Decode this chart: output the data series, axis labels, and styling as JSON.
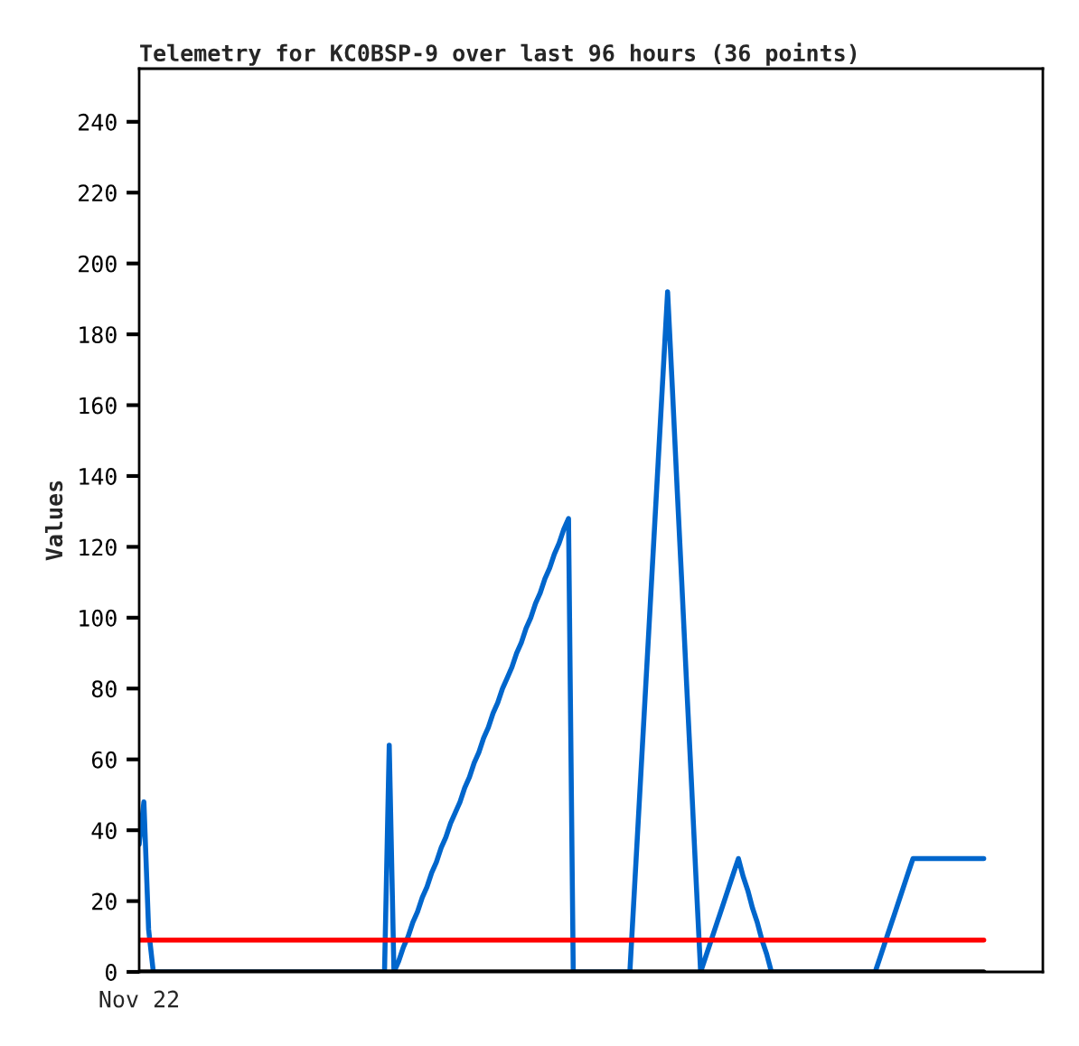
{
  "chart_data": {
    "type": "line",
    "title": "Telemetry for KC0BSP-9 over last 96 hours (36 points)",
    "ylabel": "Values",
    "annotations": [
      "Nov 22"
    ],
    "categories": [
      null,
      null,
      null,
      null,
      null,
      null,
      null,
      null,
      null,
      null,
      null,
      null,
      null,
      null,
      null,
      null,
      null,
      null,
      null,
      null,
      null,
      null,
      null,
      null,
      null,
      null,
      null,
      null,
      null,
      null,
      null,
      null,
      null,
      null,
      null,
      null,
      null,
      null,
      null,
      null,
      null,
      null,
      null,
      null,
      null,
      null,
      null,
      null,
      null,
      null,
      null,
      null,
      null,
      null,
      null,
      null,
      null,
      null,
      null,
      null,
      null,
      null,
      null,
      null,
      null,
      null,
      null,
      null,
      null,
      null,
      null,
      null,
      null,
      null,
      null,
      null,
      null,
      null,
      null,
      null,
      null,
      null,
      null,
      null,
      null,
      null,
      null,
      null,
      null,
      null,
      null,
      null,
      null,
      null,
      null,
      null,
      null,
      null,
      null,
      null,
      null,
      null,
      null,
      null,
      null,
      null,
      null,
      null,
      null,
      null,
      null,
      null,
      null,
      null,
      null,
      null,
      null,
      null,
      null,
      null,
      null,
      null,
      null,
      null,
      null,
      null,
      null,
      null,
      null,
      null,
      null,
      null,
      null,
      null,
      null,
      null,
      null,
      null,
      null,
      null,
      null,
      null,
      null,
      null,
      null,
      null,
      null,
      null,
      null,
      null,
      null,
      null,
      null,
      null,
      null,
      null,
      null,
      null,
      null,
      null,
      null,
      null,
      null,
      null,
      null,
      null,
      null,
      null,
      null,
      null,
      null,
      null,
      null,
      null,
      null,
      null,
      null,
      null,
      null,
      null
    ],
    "ylim": [
      0,
      255
    ],
    "yticks": [
      0,
      20,
      40,
      60,
      80,
      100,
      120,
      140,
      160,
      180,
      200,
      220,
      240
    ],
    "grid": false,
    "legend": false,
    "marker": "none",
    "line_style": "solid",
    "series": [
      {
        "color": "#0066cc",
        "values": [
          36,
          48,
          12,
          0,
          0,
          0,
          0,
          0,
          0,
          0,
          0,
          0,
          0,
          0,
          0,
          0,
          0,
          0,
          0,
          0,
          0,
          0,
          0,
          0,
          0,
          0,
          0,
          0,
          0,
          0,
          0,
          0,
          0,
          0,
          0,
          0,
          0,
          0,
          0,
          0,
          0,
          0,
          0,
          0,
          0,
          0,
          0,
          0,
          0,
          0,
          0,
          0,
          0,
          64,
          0,
          3,
          7,
          10,
          14,
          17,
          21,
          24,
          28,
          31,
          35,
          38,
          42,
          45,
          48,
          52,
          55,
          59,
          62,
          66,
          69,
          73,
          76,
          80,
          83,
          86,
          90,
          93,
          97,
          100,
          104,
          107,
          111,
          114,
          118,
          121,
          125,
          128,
          0,
          0,
          0,
          0,
          0,
          0,
          0,
          0,
          0,
          0,
          0,
          0,
          0,
          24,
          48,
          72,
          96,
          120,
          144,
          168,
          192,
          165,
          137,
          110,
          82,
          55,
          27,
          0,
          4,
          8,
          12,
          16,
          20,
          24,
          28,
          32,
          27,
          23,
          18,
          14,
          9,
          5,
          0,
          0,
          0,
          0,
          0,
          0,
          0,
          0,
          0,
          0,
          0,
          0,
          0,
          0,
          0,
          0,
          0,
          0,
          0,
          0,
          0,
          0,
          0,
          4,
          8,
          12,
          16,
          20,
          24,
          28,
          32,
          32,
          32,
          32,
          32,
          32,
          32,
          32,
          32,
          32,
          32,
          32,
          32,
          32,
          32,
          32
        ]
      },
      {
        "color": "#ff0000",
        "values": [
          9,
          9,
          9,
          9,
          9,
          9,
          9,
          9,
          9,
          9,
          9,
          9,
          9,
          9,
          9,
          9,
          9,
          9,
          9,
          9,
          9,
          9,
          9,
          9,
          9,
          9,
          9,
          9,
          9,
          9,
          9,
          9,
          9,
          9,
          9,
          9,
          9,
          9,
          9,
          9,
          9,
          9,
          9,
          9,
          9,
          9,
          9,
          9,
          9,
          9,
          9,
          9,
          9,
          9,
          9,
          9,
          9,
          9,
          9,
          9,
          9,
          9,
          9,
          9,
          9,
          9,
          9,
          9,
          9,
          9,
          9,
          9,
          9,
          9,
          9,
          9,
          9,
          9,
          9,
          9,
          9,
          9,
          9,
          9,
          9,
          9,
          9,
          9,
          9,
          9,
          9,
          9,
          9,
          9,
          9,
          9,
          9,
          9,
          9,
          9,
          9,
          9,
          9,
          9,
          9,
          9,
          9,
          9,
          9,
          9,
          9,
          9,
          9,
          9,
          9,
          9,
          9,
          9,
          9,
          9,
          9,
          9,
          9,
          9,
          9,
          9,
          9,
          9,
          9,
          9,
          9,
          9,
          9,
          9,
          9,
          9,
          9,
          9,
          9,
          9,
          9,
          9,
          9,
          9,
          9,
          9,
          9,
          9,
          9,
          9,
          9,
          9,
          9,
          9,
          9,
          9,
          9,
          9,
          9,
          9,
          9,
          9,
          9,
          9,
          9,
          9,
          9,
          9,
          9,
          9,
          9,
          9,
          9,
          9,
          9,
          9,
          9,
          9,
          9,
          9
        ]
      },
      {
        "color": "#000000",
        "values": [
          0,
          0,
          0,
          0,
          0,
          0,
          0,
          0,
          0,
          0,
          0,
          0,
          0,
          0,
          0,
          0,
          0,
          0,
          0,
          0,
          0,
          0,
          0,
          0,
          0,
          0,
          0,
          0,
          0,
          0,
          0,
          0,
          0,
          0,
          0,
          0,
          0,
          0,
          0,
          0,
          0,
          0,
          0,
          0,
          0,
          0,
          0,
          0,
          0,
          0,
          0,
          0,
          0,
          0,
          0,
          0,
          0,
          0,
          0,
          0,
          0,
          0,
          0,
          0,
          0,
          0,
          0,
          0,
          0,
          0,
          0,
          0,
          0,
          0,
          0,
          0,
          0,
          0,
          0,
          0,
          0,
          0,
          0,
          0,
          0,
          0,
          0,
          0,
          0,
          0,
          0,
          0,
          0,
          0,
          0,
          0,
          0,
          0,
          0,
          0,
          0,
          0,
          0,
          0,
          0,
          0,
          0,
          0,
          0,
          0,
          0,
          0,
          0,
          0,
          0,
          0,
          0,
          0,
          0,
          0,
          0,
          0,
          0,
          0,
          0,
          0,
          0,
          0,
          0,
          0,
          0,
          0,
          0,
          0,
          0,
          0,
          0,
          0,
          0,
          0,
          0,
          0,
          0,
          0,
          0,
          0,
          0,
          0,
          0,
          0,
          0,
          0,
          0,
          0,
          0,
          0,
          0,
          0,
          0,
          0,
          0,
          0,
          0,
          0,
          0,
          0,
          0,
          0,
          0,
          0,
          0,
          0,
          0,
          0,
          0,
          0,
          0,
          0,
          0,
          0
        ]
      }
    ]
  }
}
